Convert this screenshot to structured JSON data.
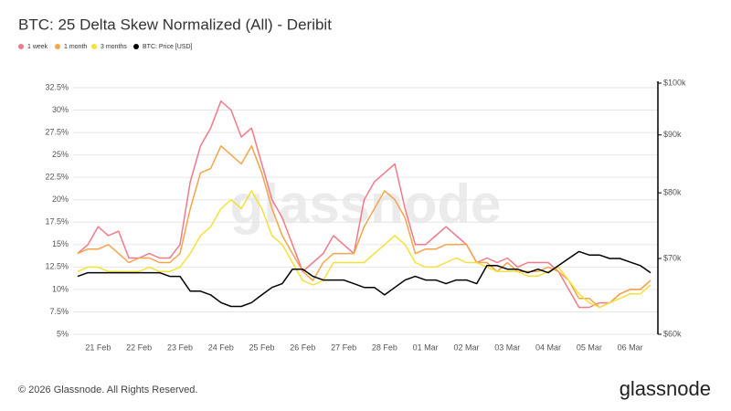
{
  "chart_data": {
    "type": "line",
    "title": "BTC: 25 Delta Skew Normalized (All) - Deribit",
    "watermark": "glassnode",
    "x": [
      null,
      null,
      "21 Feb",
      null,
      null,
      null,
      "22 Feb",
      null,
      null,
      null,
      "23 Feb",
      null,
      null,
      null,
      "24 Feb",
      null,
      null,
      null,
      "25 Feb",
      null,
      null,
      null,
      "26 Feb",
      null,
      null,
      null,
      "27 Feb",
      null,
      null,
      null,
      "28 Feb",
      null,
      null,
      null,
      "01 Mar",
      null,
      null,
      null,
      "02 Mar",
      null,
      null,
      null,
      "03 Mar",
      null,
      null,
      null,
      "04 Mar",
      null,
      null,
      null,
      "05 Mar",
      null,
      null,
      null,
      "06 Mar",
      null,
      null
    ],
    "series": [
      {
        "name": "1 week",
        "color": "#f07a8a",
        "values": [
          14,
          15,
          17,
          16,
          16.5,
          13.5,
          13.5,
          14,
          13.5,
          13.5,
          15,
          22,
          26,
          28,
          31,
          30,
          27,
          28,
          24,
          20,
          18,
          15,
          12,
          13,
          14,
          16,
          15,
          14,
          20,
          22,
          23,
          24,
          19,
          15,
          15,
          16,
          17,
          16,
          15,
          13,
          13.5,
          13,
          13.5,
          12.5,
          13,
          13,
          13,
          12,
          10,
          8,
          8,
          8.5,
          8.5,
          9.5,
          10,
          10,
          11
        ]
      },
      {
        "name": "1 month",
        "color": "#f5a449",
        "values": [
          14,
          14.5,
          14.5,
          15,
          14,
          13,
          13.5,
          13.5,
          13,
          13,
          14,
          19,
          23,
          23.5,
          26,
          25,
          24,
          26,
          23,
          19,
          16,
          14,
          12,
          11,
          13,
          14,
          14,
          14,
          17,
          19,
          21,
          20,
          18,
          14,
          14.5,
          14.5,
          15,
          15,
          15,
          13,
          13,
          12,
          13,
          12,
          12,
          12,
          12.5,
          12,
          11,
          9,
          9,
          8,
          8.5,
          9.5,
          10,
          10,
          11
        ]
      },
      {
        "name": "3 months",
        "color": "#f5e03a",
        "values": [
          12,
          12.5,
          12.5,
          12,
          12,
          12,
          12,
          12.5,
          12,
          12,
          12.5,
          14,
          16,
          17,
          19,
          20,
          19,
          21,
          19,
          16,
          15,
          13,
          11,
          10.5,
          11,
          13,
          13,
          13,
          13,
          14,
          15,
          16,
          15,
          13,
          12.5,
          12.5,
          13,
          13.5,
          13,
          13,
          12.5,
          12,
          12,
          12,
          11.5,
          11.5,
          12,
          12.5,
          11,
          9.5,
          8.5,
          8,
          8.5,
          9,
          9.5,
          9.5,
          10.5
        ]
      },
      {
        "name": "BTC: Price [USD]",
        "color": "#000000",
        "axis": "y2",
        "values": [
          67500,
          68000,
          68000,
          68000,
          68000,
          68000,
          68000,
          68000,
          68000,
          67500,
          67500,
          65500,
          65500,
          65000,
          64000,
          63500,
          63500,
          64000,
          65000,
          66000,
          66500,
          68500,
          68500,
          67500,
          67000,
          67000,
          67000,
          66500,
          66000,
          66000,
          65000,
          66000,
          67000,
          67500,
          67000,
          67000,
          66500,
          67000,
          67000,
          66500,
          69000,
          69000,
          68500,
          68500,
          68000,
          68500,
          68000,
          69000,
          70000,
          71000,
          70500,
          70500,
          70000,
          70000,
          69500,
          69000,
          68000
        ]
      }
    ],
    "ylim": [
      5,
      32.5
    ],
    "yticks": [
      {
        "value": 5,
        "label": "5%"
      },
      {
        "value": 7.5,
        "label": "7.5%"
      },
      {
        "value": 10,
        "label": "10%"
      },
      {
        "value": 12.5,
        "label": "12.5%"
      },
      {
        "value": 15,
        "label": "15%"
      },
      {
        "value": 17.5,
        "label": "17.5%"
      },
      {
        "value": 20,
        "label": "20%"
      },
      {
        "value": 22.5,
        "label": "22.5%"
      },
      {
        "value": 25,
        "label": "25%"
      },
      {
        "value": 27.5,
        "label": "27.5%"
      },
      {
        "value": 30,
        "label": "30%"
      },
      {
        "value": 32.5,
        "label": "32.5%"
      }
    ],
    "y2lim": [
      60000,
      100000
    ],
    "y2ticks": [
      {
        "value": 60000,
        "label": "$60k"
      },
      {
        "value": 70000,
        "label": "$70k"
      },
      {
        "value": 80000,
        "label": "$80k"
      },
      {
        "value": 90000,
        "label": "$90k"
      },
      {
        "value": 100000,
        "label": "$100k"
      }
    ],
    "y2log": true,
    "grid": true
  },
  "footer": {
    "copyright": "© 2026 Glassnode. All Rights Reserved.",
    "logo": "glassnode"
  }
}
